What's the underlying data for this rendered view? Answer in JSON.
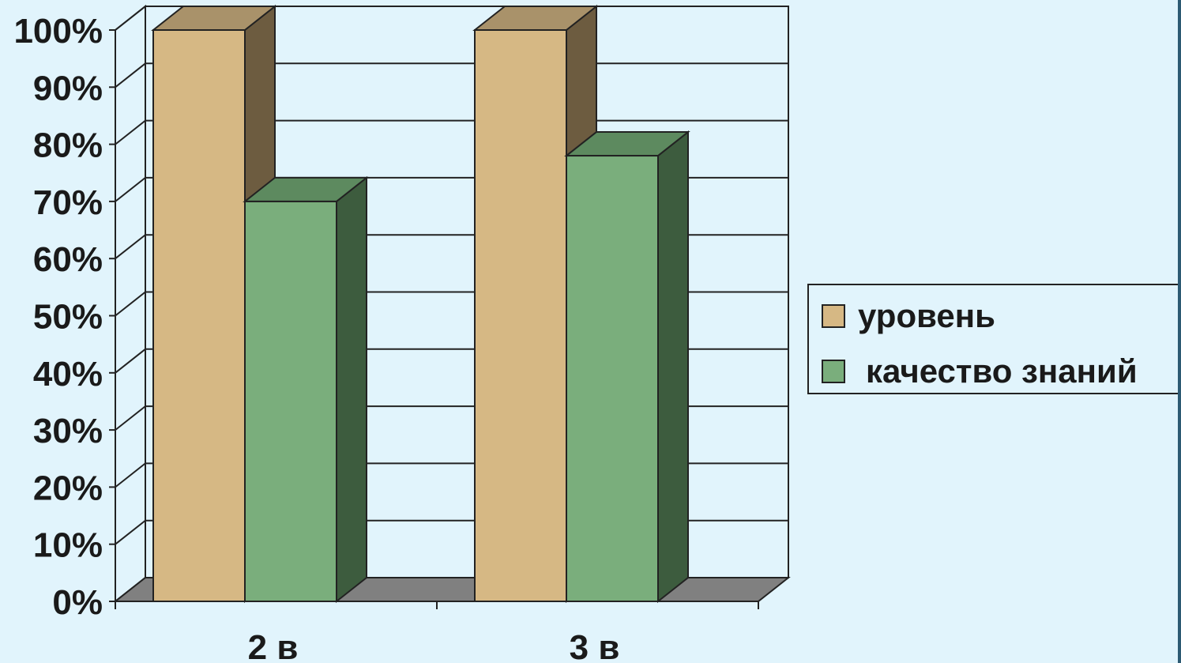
{
  "chart_data": {
    "type": "bar",
    "categories": [
      "2 в",
      "3 в"
    ],
    "series": [
      {
        "name": "уровень",
        "values": [
          100,
          100
        ],
        "color": "#d6b884",
        "side_color": "#6d5c40",
        "top_color": "#a9926a"
      },
      {
        "name": "качество знаний",
        "values": [
          70,
          78
        ],
        "color": "#7aae7c",
        "side_color": "#3d5c3e",
        "top_color": "#5d8a5f"
      }
    ],
    "ylim": [
      0,
      100
    ],
    "yticks": [
      "0%",
      "10%",
      "20%",
      "30%",
      "40%",
      "50%",
      "60%",
      "70%",
      "80%",
      "90%",
      "100%"
    ],
    "grid": true,
    "legend_position": "right",
    "style": "3d-clustered-column"
  }
}
